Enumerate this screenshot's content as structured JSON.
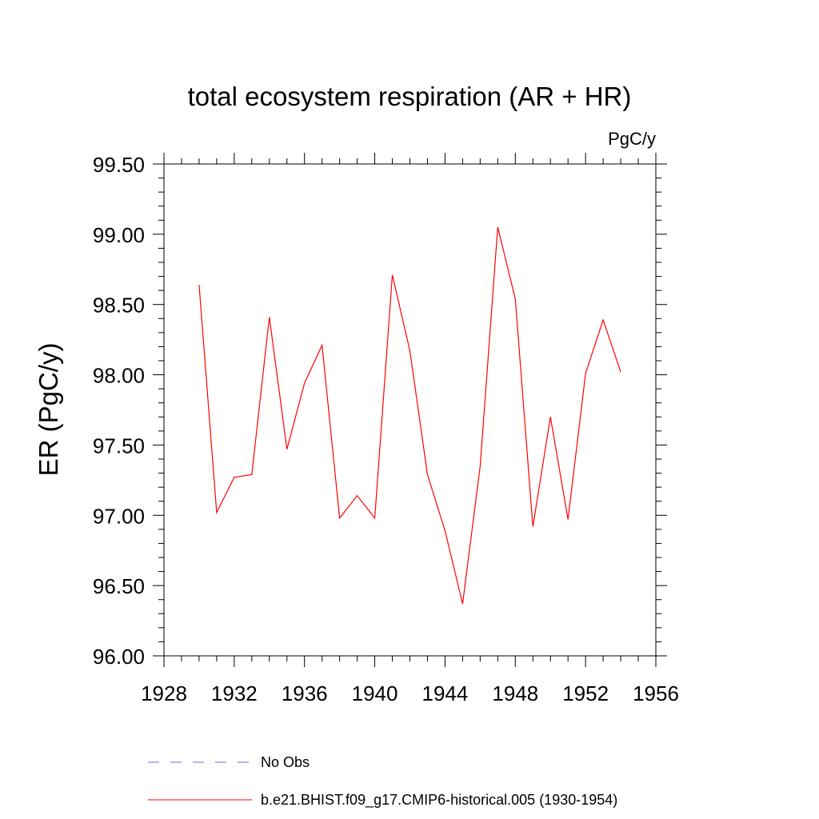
{
  "chart_data": {
    "type": "line",
    "title": "total ecosystem respiration (AR + HR)",
    "units_label": "PgC/y",
    "ylabel": "ER  (PgC/y)",
    "xlabel": "",
    "xlim": [
      1928,
      1956
    ],
    "ylim": [
      96.0,
      99.5
    ],
    "x_ticks": [
      1928,
      1932,
      1936,
      1940,
      1944,
      1948,
      1952,
      1956
    ],
    "x_tick_labels": [
      "1928",
      "1932",
      "1936",
      "1940",
      "1944",
      "1948",
      "1952",
      "1956"
    ],
    "y_ticks": [
      96.0,
      96.5,
      97.0,
      97.5,
      98.0,
      98.5,
      99.0,
      99.5
    ],
    "y_tick_labels": [
      "96.00",
      "96.50",
      "97.00",
      "97.50",
      "98.00",
      "98.50",
      "99.00",
      "99.50"
    ],
    "grid": false,
    "series": [
      {
        "name": "b.e21.BHIST.f09_g17.CMIP6-historical.005 (1930-1954)",
        "color": "#ff0000",
        "style": "solid",
        "x": [
          1930,
          1931,
          1932,
          1933,
          1934,
          1935,
          1936,
          1937,
          1938,
          1939,
          1940,
          1941,
          1942,
          1943,
          1944,
          1945,
          1946,
          1947,
          1948,
          1949,
          1950,
          1951,
          1952,
          1953,
          1954
        ],
        "values": [
          98.64,
          97.02,
          97.27,
          97.29,
          98.41,
          97.47,
          97.94,
          98.21,
          96.98,
          97.14,
          96.98,
          98.71,
          98.17,
          97.29,
          96.89,
          96.37,
          97.35,
          99.05,
          98.54,
          96.92,
          97.7,
          96.97,
          98.01,
          98.39,
          98.02
        ]
      }
    ],
    "legend": {
      "placement": "bottom-left",
      "entries": [
        {
          "label": "No Obs",
          "color": "#6a6ad0",
          "style": "dashed"
        },
        {
          "label": "b.e21.BHIST.f09_g17.CMIP6-historical.005 (1930-1954)",
          "color": "#ff0000",
          "style": "solid"
        }
      ]
    }
  }
}
